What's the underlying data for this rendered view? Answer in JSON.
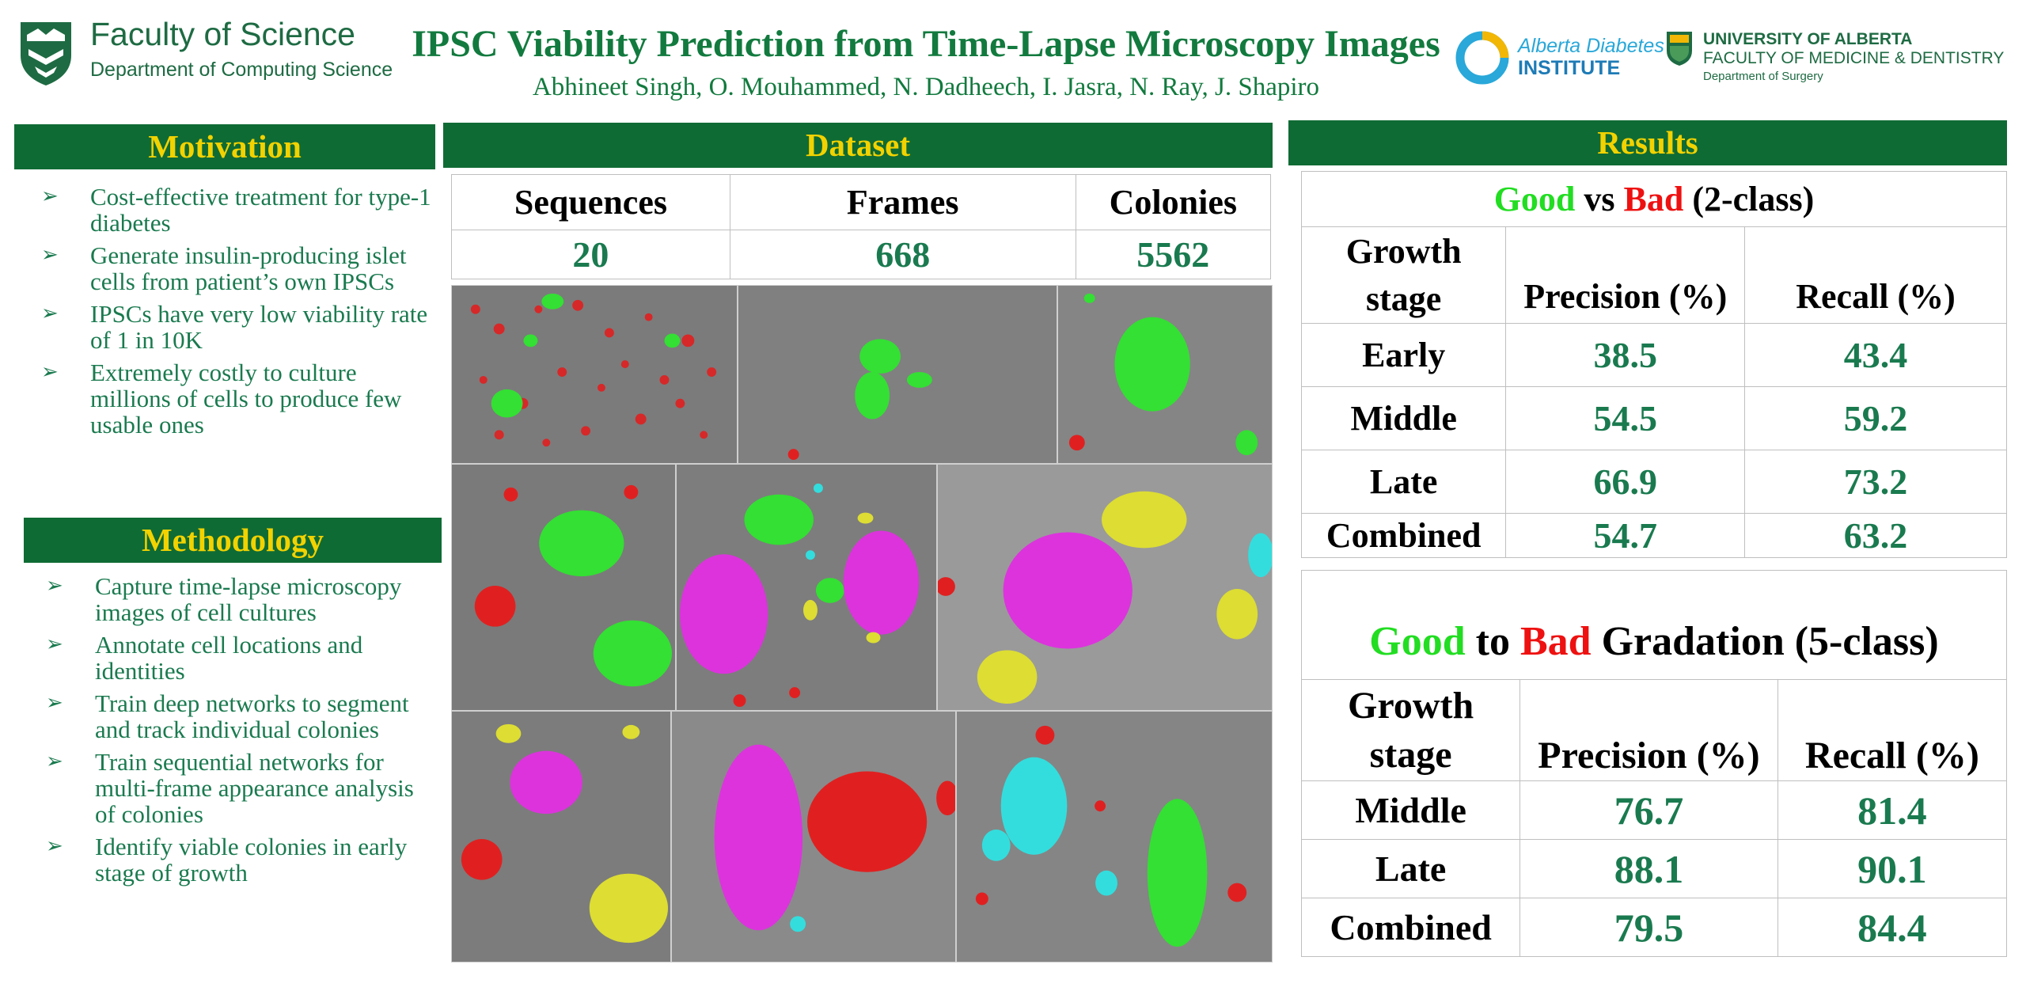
{
  "header": {
    "faculty_title": "Faculty of Science",
    "faculty_dept": "Department of Computing Science",
    "poster_title": "IPSC Viability Prediction from Time-Lapse Microscopy Images",
    "authors": "Abhineet Singh, O. Mouhammed, N. Dadheech, I. Jasra, N. Ray, J. Shapiro",
    "adi_line1": "Alberta Diabetes",
    "adi_line2": "INSTITUTE",
    "ua_line1": "UNIVERSITY OF ALBERTA",
    "ua_line2": "FACULTY OF MEDICINE & DENTISTRY",
    "ua_line3": "Department of Surgery"
  },
  "colors": {
    "bar_green": "#0f6b34",
    "heading_gold": "#f2d200",
    "text_green": "#1a7a4f",
    "good": "#22dd22",
    "bad": "#ee1111"
  },
  "motivation": {
    "title": "Motivation",
    "items": [
      "Cost-effective treatment for type-1 diabetes",
      "Generate insulin-producing islet cells from patient’s own IPSCs",
      "IPSCs have very low viability rate of 1 in 10K",
      "Extremely costly to culture millions of cells to produce few usable ones"
    ]
  },
  "methodology": {
    "title": "Methodology",
    "items": [
      "Capture time-lapse microscopy images of cell cultures",
      "Annotate cell locations and identities",
      "Train deep networks to segment and track  individual colonies",
      "Train sequential networks for multi-frame appearance analysis of colonies",
      "Identify viable colonies in early stage of growth"
    ]
  },
  "dataset": {
    "title": "Dataset",
    "headers": [
      "Sequences",
      "Frames",
      "Colonies"
    ],
    "values": [
      "20",
      "668",
      "5562"
    ]
  },
  "results": {
    "title": "Results",
    "table1": {
      "title_good": "Good",
      "title_mid": " vs ",
      "title_bad": "Bad",
      "title_rest": " (2-class)",
      "col_stage_line1": "Growth",
      "col_stage_line2": "stage",
      "col_precision": "Precision (%)",
      "col_recall": "Recall (%)",
      "rows": [
        {
          "stage": "Early",
          "precision": "38.5",
          "recall": "43.4"
        },
        {
          "stage": "Middle",
          "precision": "54.5",
          "recall": "59.2"
        },
        {
          "stage": "Late",
          "precision": "66.9",
          "recall": "73.2"
        },
        {
          "stage": "Combined",
          "precision": "54.7",
          "recall": "63.2"
        }
      ]
    },
    "table2": {
      "title_good": "Good",
      "title_mid": " to ",
      "title_bad": "Bad",
      "title_rest": " Gradation (5-class)",
      "col_stage_line1": "Growth",
      "col_stage_line2": "stage",
      "col_precision": "Precision (%)",
      "col_recall": "Recall (%)",
      "rows": [
        {
          "stage": "Middle",
          "precision": "76.7",
          "recall": "81.4"
        },
        {
          "stage": "Late",
          "precision": "88.1",
          "recall": "90.1"
        },
        {
          "stage": "Combined",
          "precision": "79.5",
          "recall": "84.4"
        }
      ]
    }
  },
  "icons": {
    "bullet": "arrow-bullet-icon",
    "faculty_logo": "shield-logo",
    "adi_logo": "ring-logo",
    "ua_logo": "crest-logo"
  }
}
